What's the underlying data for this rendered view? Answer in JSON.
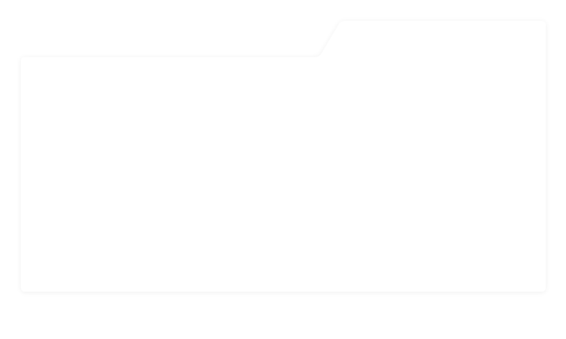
{
  "folder": {
    "icon": "folder-icon",
    "fill_color": "#ffffff",
    "shadow_color": "#000000"
  }
}
